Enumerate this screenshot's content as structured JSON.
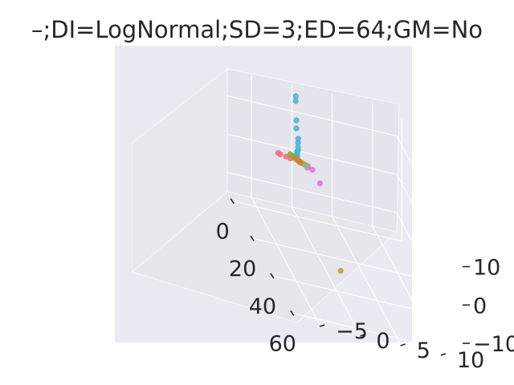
{
  "chart_data": {
    "type": "scatter",
    "projection": "3d",
    "title": "–;DI=LogNormal;SD=3;ED=64;GM=No",
    "xlabel": "",
    "ylabel": "",
    "zlabel": "",
    "xlim": [
      -5,
      65
    ],
    "ylim": [
      -8,
      13
    ],
    "zlim": [
      -15,
      17
    ],
    "grid": true,
    "x_ticks": [
      0,
      20,
      40,
      60
    ],
    "x_tick_labels": [
      "0",
      "20",
      "40",
      "60"
    ],
    "y_ticks": [
      -5,
      0,
      5,
      10
    ],
    "y_tick_labels": [
      "−5",
      "0",
      "5",
      "10"
    ],
    "z_ticks": [
      -10,
      0,
      10
    ],
    "z_tick_labels": [
      "−10",
      "0",
      "10"
    ],
    "colors": {
      "background": "#eaeaf2",
      "blue": "#4bb3d8",
      "gold": "#c39a3c",
      "magenta": "#e96de3",
      "pink": "#f06f82",
      "olive": "#9aa43a",
      "orange": "#d0803a"
    },
    "series": [
      {
        "color": "#4bb3d8",
        "points": [
          [
            0.6,
            -0.2,
            16.5
          ],
          [
            0.5,
            -0.2,
            15.2
          ],
          [
            0.3,
            -0.1,
            10.1
          ],
          [
            0.3,
            -0.1,
            8.0
          ],
          [
            0.6,
            0.1,
            5.6
          ],
          [
            0.5,
            0.1,
            4.5
          ],
          [
            0.4,
            0.1,
            3.3
          ],
          [
            0.4,
            0.1,
            2.5
          ],
          [
            0.3,
            0.0,
            2.0
          ],
          [
            0.3,
            0.0,
            1.6
          ],
          [
            0.3,
            0.0,
            1.2
          ],
          [
            0.3,
            0.0,
            0.9
          ],
          [
            0.2,
            0.0,
            0.6
          ],
          [
            0.2,
            0.0,
            0.3
          ],
          [
            0.1,
            0.0,
            0.0
          ]
        ]
      },
      {
        "color": "#c39a3c",
        "points": [
          [
            60,
            -2,
            -1
          ],
          [
            3,
            1,
            0
          ],
          [
            2.5,
            0.8,
            0
          ],
          [
            2,
            0.6,
            -0.1
          ],
          [
            1.5,
            0.4,
            -0.1
          ],
          [
            1,
            0.2,
            -0.1
          ],
          [
            0.5,
            0.1,
            0
          ]
        ]
      },
      {
        "color": "#e96de3",
        "points": [
          [
            7,
            2,
            -2
          ],
          [
            3.5,
            1.5,
            -0.4
          ],
          [
            2.5,
            1,
            -0.6
          ]
        ]
      },
      {
        "color": "#f06f82",
        "points": [
          [
            -2.5,
            -2,
            -0.7
          ],
          [
            -2,
            -1.8,
            -0.7
          ],
          [
            -1,
            -1.2,
            -0.5
          ],
          [
            0,
            -0.8,
            -0.3
          ]
        ]
      },
      {
        "color": "#9aa43a",
        "points": [
          [
            -1.8,
            -0.6,
            0
          ],
          [
            -1.4,
            -0.5,
            0
          ],
          [
            -1,
            -0.4,
            0
          ],
          [
            -0.6,
            -0.3,
            0
          ],
          [
            -0.2,
            -0.2,
            0
          ]
        ]
      },
      {
        "color": "#d0803a",
        "points": [
          [
            0.2,
            -0.1,
            0
          ],
          [
            0.6,
            0,
            0
          ],
          [
            1,
            0.1,
            0
          ],
          [
            1.4,
            0.2,
            0
          ],
          [
            1.8,
            0.2,
            0
          ]
        ]
      },
      {
        "color": "#7ec27a",
        "points": [
          [
            2.5,
            0.8,
            -0.1
          ]
        ]
      }
    ]
  }
}
